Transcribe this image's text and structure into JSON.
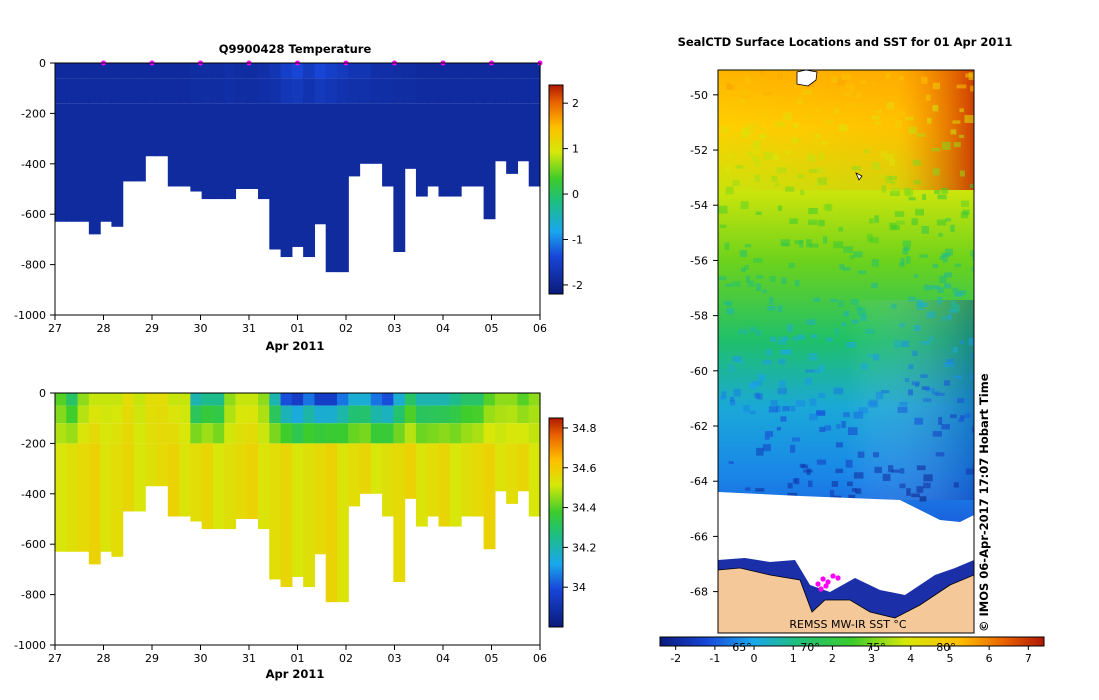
{
  "chart_data": [
    {
      "type": "heatmap",
      "title": "Q9900428  Temperature",
      "xlabel": "Apr 2011",
      "ylabel": "",
      "x_ticks": [
        "27",
        "28",
        "29",
        "30",
        "31",
        "01",
        "02",
        "03",
        "04",
        "05",
        "06"
      ],
      "y_ticks": [
        "0",
        "-200",
        "-400",
        "-600",
        "-800",
        "-1000"
      ],
      "ylim": [
        -1000,
        0
      ],
      "colorbar": {
        "ticks": [
          "2",
          "1",
          "0",
          "-1",
          "-2"
        ],
        "range": [
          -2.2,
          2.4
        ]
      },
      "profile_depths": [
        -630,
        -630,
        -630,
        -680,
        -630,
        -650,
        -470,
        -470,
        -370,
        -370,
        -490,
        -490,
        -510,
        -540,
        -540,
        -540,
        -500,
        -500,
        -540,
        -740,
        -770,
        -730,
        -770,
        -640,
        -830,
        -830,
        -450,
        -400,
        -400,
        -490,
        -750,
        -420,
        -530,
        -490,
        -530,
        -530,
        -490,
        -490,
        -620,
        -390,
        -440,
        -390,
        -490
      ],
      "values_description_surface": [
        -1.9,
        -1.9,
        -1.9,
        -1.9,
        -1.9,
        -1.9,
        -1.9,
        -1.9,
        -1.9,
        -1.9,
        -1.9,
        -1.9,
        -1.85,
        -1.85,
        -1.85,
        -1.8,
        -1.85,
        -1.85,
        -1.8,
        -1.7,
        -1.5,
        -1.4,
        -1.6,
        -1.4,
        -1.5,
        -1.6,
        -1.7,
        -1.7,
        -1.8,
        -1.8,
        -1.85,
        -1.85,
        -1.9,
        -1.9,
        -1.9,
        -1.9,
        -1.9,
        -1.9,
        -1.9,
        -1.9,
        -1.9,
        -1.9,
        -1.9
      ],
      "markers_at": [
        "28",
        "29",
        "30",
        "31",
        "01",
        "02",
        "03",
        "04",
        "05",
        "06"
      ]
    },
    {
      "type": "heatmap",
      "title": "",
      "xlabel": "Apr 2011",
      "ylabel": "",
      "x_ticks": [
        "27",
        "28",
        "29",
        "30",
        "31",
        "01",
        "02",
        "03",
        "04",
        "05",
        "06"
      ],
      "y_ticks": [
        "0",
        "-200",
        "-400",
        "-600",
        "-800",
        "-1000"
      ],
      "ylim": [
        -1000,
        0
      ],
      "colorbar": {
        "ticks": [
          "34.8",
          "34.6",
          "34.4",
          "34.2",
          "34"
        ],
        "range": [
          33.8,
          34.85
        ]
      },
      "surface_values": [
        34.4,
        34.3,
        34.45,
        34.5,
        34.5,
        34.5,
        34.55,
        34.5,
        34.55,
        34.55,
        34.5,
        34.5,
        34.2,
        34.25,
        34.25,
        34.45,
        34.5,
        34.5,
        34.45,
        34.2,
        34.0,
        33.95,
        34.05,
        33.95,
        33.95,
        34.05,
        34.15,
        34.15,
        34.05,
        34.0,
        34.15,
        34.3,
        34.2,
        34.2,
        34.2,
        34.25,
        34.3,
        34.3,
        34.4,
        34.45,
        34.45,
        34.4,
        34.45
      ]
    },
    {
      "type": "heatmap",
      "title": "SealCTD Surface Locations and SST for 01 Apr 2011",
      "y_ticks": [
        "-50",
        "-52",
        "-54",
        "-56",
        "-58",
        "-60",
        "-62",
        "-64",
        "-66",
        "-68"
      ],
      "ylim": [
        -69.5,
        -49.1
      ],
      "x_ticks": [
        "65°",
        "70°",
        "75°",
        "80°"
      ],
      "colorbar": {
        "ticks": [
          "-2",
          "-1",
          "0",
          "1",
          "2",
          "3",
          "4",
          "5",
          "6",
          "7"
        ],
        "range": [
          -2.4,
          7.4
        ],
        "unit_label": "REMSS MW-IR SST °C"
      },
      "side_label": "© IMOS 06-Apr-2017 17:07 Hobart Time"
    }
  ],
  "colors": {
    "land": "#f5c89a",
    "ice": "#ffffff",
    "marker": "#ff00ff"
  }
}
